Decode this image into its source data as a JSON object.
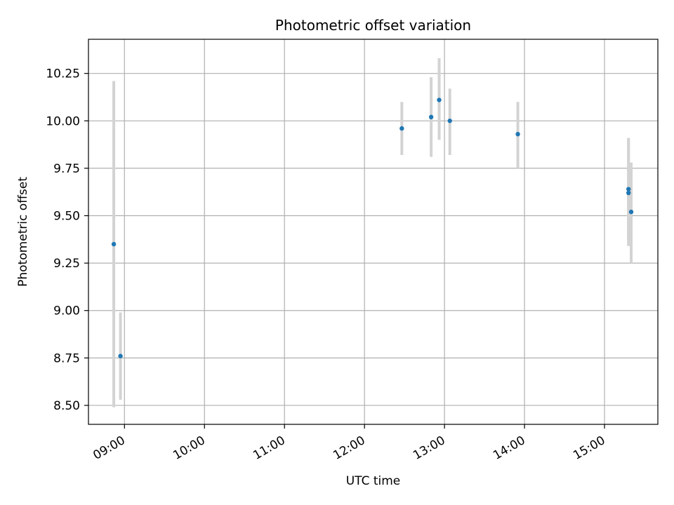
{
  "chart_data": {
    "type": "scatter",
    "title": "Photometric offset variation",
    "xlabel": "UTC time",
    "ylabel": "Photometric offset",
    "x_axis": "time",
    "xlim": [
      "08:33",
      "15:40"
    ],
    "ylim": [
      8.4,
      10.43
    ],
    "xticks": [
      "09:00",
      "10:00",
      "11:00",
      "12:00",
      "13:00",
      "14:00",
      "15:00"
    ],
    "yticks": [
      8.5,
      8.75,
      9.0,
      9.25,
      9.5,
      9.75,
      10.0,
      10.25
    ],
    "ytick_labels": [
      "8.50",
      "8.75",
      "9.00",
      "9.25",
      "9.50",
      "9.75",
      "10.00",
      "10.25"
    ],
    "grid": true,
    "x_tick_rotation_deg": 30,
    "marker_color": "#1f77b4",
    "errorbar_color": "#d3d3d3",
    "points": [
      {
        "time": "08:52",
        "y": 9.35,
        "y_low": 8.49,
        "y_high": 10.21
      },
      {
        "time": "08:57",
        "y": 8.76,
        "y_low": 8.53,
        "y_high": 8.99
      },
      {
        "time": "12:28",
        "y": 9.96,
        "y_low": 9.82,
        "y_high": 10.1
      },
      {
        "time": "12:50",
        "y": 10.02,
        "y_low": 9.81,
        "y_high": 10.23
      },
      {
        "time": "12:56",
        "y": 10.11,
        "y_low": 9.9,
        "y_high": 10.33
      },
      {
        "time": "13:04",
        "y": 10.0,
        "y_low": 9.82,
        "y_high": 10.17
      },
      {
        "time": "13:55",
        "y": 9.93,
        "y_low": 9.75,
        "y_high": 10.1
      },
      {
        "time": "15:18",
        "y": 9.64,
        "y_low": 9.38,
        "y_high": 9.91
      },
      {
        "time": "15:18",
        "y": 9.62,
        "y_low": 9.34,
        "y_high": 9.9
      },
      {
        "time": "15:20",
        "y": 9.52,
        "y_low": 9.25,
        "y_high": 9.78
      }
    ]
  }
}
